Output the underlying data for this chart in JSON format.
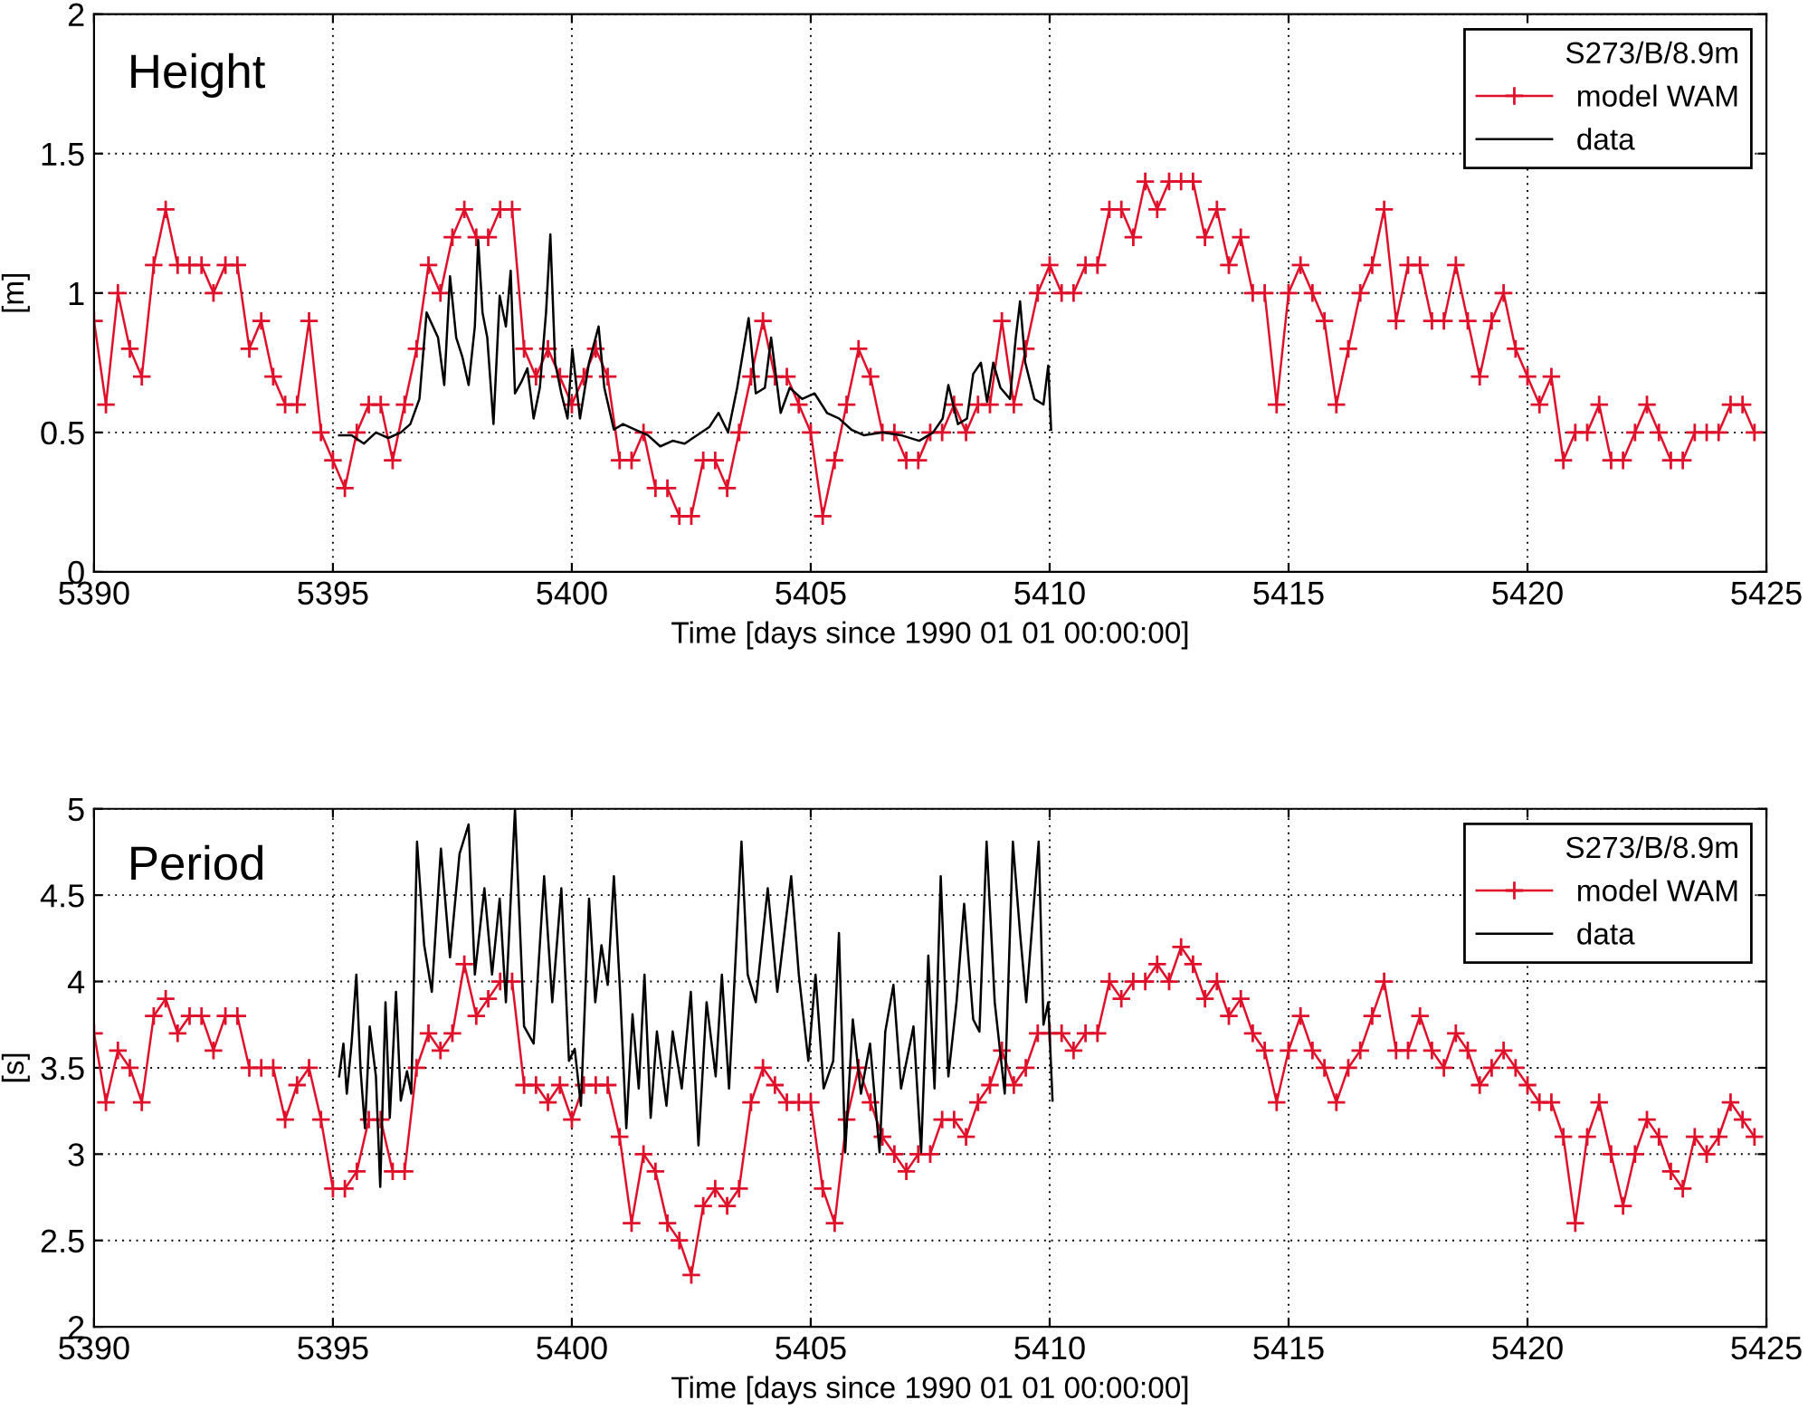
{
  "chart_data": [
    {
      "type": "line",
      "title": "Height",
      "xlabel": "Time [days since 1990 01 01 00:00:00]",
      "ylabel": "[m]",
      "legend_title": "S273/B/8.9m",
      "legend": "top right",
      "grid": true,
      "xlim": [
        5390,
        5425
      ],
      "xticks": [
        5390,
        5395,
        5400,
        5405,
        5410,
        5415,
        5420,
        5425
      ],
      "ylim": [
        0,
        2
      ],
      "yticks": [
        0,
        0.5,
        1,
        1.5,
        2
      ],
      "series": [
        {
          "name": "model WAM",
          "color": "#e0102a",
          "marker": "cross",
          "x": [
            5390,
            5390.25,
            5390.5,
            5390.75,
            5391,
            5391.25,
            5391.5,
            5391.75,
            5392,
            5392.25,
            5392.5,
            5392.75,
            5393,
            5393.25,
            5393.5,
            5393.75,
            5394,
            5394.25,
            5394.5,
            5394.75,
            5395,
            5395.25,
            5395.5,
            5395.75,
            5396,
            5396.25,
            5396.5,
            5396.75,
            5397,
            5397.25,
            5397.5,
            5397.75,
            5398,
            5398.25,
            5398.5,
            5398.75,
            5399,
            5399.25,
            5399.5,
            5399.75,
            5400,
            5400.25,
            5400.5,
            5400.75,
            5401,
            5401.25,
            5401.5,
            5401.75,
            5402,
            5402.25,
            5402.5,
            5402.75,
            5403,
            5403.25,
            5403.5,
            5403.75,
            5404,
            5404.25,
            5404.5,
            5404.75,
            5405,
            5405.25,
            5405.5,
            5405.75,
            5406,
            5406.25,
            5406.5,
            5406.75,
            5407,
            5407.25,
            5407.5,
            5407.75,
            5408,
            5408.25,
            5408.5,
            5408.75,
            5409,
            5409.25,
            5409.5,
            5409.75,
            5410,
            5410.25,
            5410.5,
            5410.75,
            5411,
            5411.25,
            5411.5,
            5411.75,
            5412,
            5412.25,
            5412.5,
            5412.75,
            5413,
            5413.25,
            5413.5,
            5413.75,
            5414,
            5414.25,
            5414.5,
            5414.75,
            5415,
            5415.25,
            5415.5,
            5415.75,
            5416,
            5416.25,
            5416.5,
            5416.75,
            5417,
            5417.25,
            5417.5,
            5417.75,
            5418,
            5418.25,
            5418.5,
            5418.75,
            5419,
            5419.25,
            5419.5,
            5419.75,
            5420,
            5420.25,
            5420.5,
            5420.75,
            5421,
            5421.25,
            5421.5,
            5421.75,
            5422,
            5422.25,
            5422.5,
            5422.75,
            5423,
            5423.25,
            5423.5,
            5423.75,
            5424,
            5424.25,
            5424.5,
            5424.75
          ],
          "values": [
            0.9,
            0.6,
            1.0,
            0.8,
            0.7,
            1.1,
            1.3,
            1.1,
            1.1,
            1.1,
            1.0,
            1.1,
            1.1,
            0.8,
            0.9,
            0.7,
            0.6,
            0.6,
            0.9,
            0.5,
            0.4,
            0.3,
            0.5,
            0.6,
            0.6,
            0.4,
            0.6,
            0.8,
            1.1,
            1.0,
            1.2,
            1.3,
            1.2,
            1.2,
            1.3,
            1.3,
            0.8,
            0.7,
            0.8,
            0.7,
            0.6,
            0.7,
            0.8,
            0.7,
            0.4,
            0.4,
            0.5,
            0.3,
            0.3,
            0.2,
            0.2,
            0.4,
            0.4,
            0.3,
            0.5,
            0.7,
            0.9,
            0.7,
            0.7,
            0.6,
            0.5,
            0.2,
            0.4,
            0.6,
            0.8,
            0.7,
            0.5,
            0.5,
            0.4,
            0.4,
            0.5,
            0.5,
            0.6,
            0.5,
            0.6,
            0.6,
            0.9,
            0.6,
            0.8,
            1.0,
            1.1,
            1.0,
            1.0,
            1.1,
            1.1,
            1.3,
            1.3,
            1.2,
            1.4,
            1.3,
            1.4,
            1.4,
            1.4,
            1.2,
            1.3,
            1.1,
            1.2,
            1.0,
            1.0,
            0.6,
            1.0,
            1.1,
            1.0,
            0.9,
            0.6,
            0.8,
            1.0,
            1.1,
            1.3,
            0.9,
            1.1,
            1.1,
            0.9,
            0.9,
            1.1,
            0.9,
            0.7,
            0.9,
            1.0,
            0.8,
            0.7,
            0.6,
            0.7,
            0.4,
            0.5,
            0.5,
            0.6,
            0.4,
            0.4,
            0.5,
            0.6,
            0.5,
            0.4,
            0.4,
            0.5,
            0.5,
            0.5,
            0.6,
            0.6,
            0.5
          ]
        },
        {
          "name": "data",
          "color": "#000000",
          "marker": "none",
          "x": [
            5395.13,
            5395.39,
            5395.65,
            5395.9,
            5396.16,
            5396.42,
            5396.62,
            5396.81,
            5396.96,
            5397.2,
            5397.33,
            5397.45,
            5397.58,
            5397.71,
            5397.84,
            5397.97,
            5398.04,
            5398.13,
            5398.23,
            5398.36,
            5398.49,
            5398.62,
            5398.72,
            5398.81,
            5398.94,
            5399.07,
            5399.2,
            5399.33,
            5399.46,
            5399.55,
            5399.65,
            5399.78,
            5399.91,
            5400.01,
            5400.17,
            5400.36,
            5400.56,
            5400.68,
            5400.88,
            5401.07,
            5401.33,
            5401.59,
            5401.85,
            5402.11,
            5402.36,
            5402.62,
            5402.88,
            5403.07,
            5403.27,
            5403.46,
            5403.7,
            5403.85,
            5404.04,
            5404.17,
            5404.37,
            5404.56,
            5404.82,
            5405.08,
            5405.34,
            5405.59,
            5405.85,
            5406.11,
            5406.5,
            5406.89,
            5407.27,
            5407.56,
            5407.76,
            5407.88,
            5408.08,
            5408.27,
            5408.4,
            5408.56,
            5408.69,
            5408.82,
            5408.97,
            5409.17,
            5409.29,
            5409.38,
            5409.49,
            5409.68,
            5409.87,
            5409.97,
            5410.03
          ],
          "values": [
            0.49,
            0.49,
            0.46,
            0.5,
            0.48,
            0.5,
            0.53,
            0.62,
            0.93,
            0.84,
            0.67,
            1.06,
            0.84,
            0.77,
            0.67,
            0.88,
            1.19,
            0.93,
            0.84,
            0.53,
            0.99,
            0.88,
            1.08,
            0.64,
            0.68,
            0.73,
            0.55,
            0.66,
            0.93,
            1.21,
            0.75,
            0.64,
            0.55,
            0.8,
            0.55,
            0.75,
            0.88,
            0.66,
            0.51,
            0.53,
            0.51,
            0.49,
            0.45,
            0.47,
            0.46,
            0.49,
            0.52,
            0.57,
            0.5,
            0.66,
            0.91,
            0.64,
            0.66,
            0.84,
            0.57,
            0.66,
            0.62,
            0.64,
            0.57,
            0.55,
            0.51,
            0.49,
            0.5,
            0.49,
            0.47,
            0.5,
            0.55,
            0.67,
            0.53,
            0.55,
            0.71,
            0.75,
            0.61,
            0.75,
            0.66,
            0.62,
            0.84,
            0.97,
            0.75,
            0.62,
            0.6,
            0.74,
            0.51
          ]
        }
      ]
    },
    {
      "type": "line",
      "title": "Period",
      "xlabel": "Time [days since 1990 01 01 00:00:00]",
      "ylabel": "[s]",
      "legend_title": "S273/B/8.9m",
      "legend": "top right",
      "grid": true,
      "xlim": [
        5390,
        5425
      ],
      "xticks": [
        5390,
        5395,
        5400,
        5405,
        5410,
        5415,
        5420,
        5425
      ],
      "ylim": [
        2,
        5
      ],
      "yticks": [
        2,
        2.5,
        3,
        3.5,
        4,
        4.5,
        5
      ],
      "series": [
        {
          "name": "model WAM",
          "color": "#e0102a",
          "marker": "cross",
          "x": [
            5390,
            5390.25,
            5390.5,
            5390.75,
            5391,
            5391.25,
            5391.5,
            5391.75,
            5392,
            5392.25,
            5392.5,
            5392.75,
            5393,
            5393.25,
            5393.5,
            5393.75,
            5394,
            5394.25,
            5394.5,
            5394.75,
            5395,
            5395.25,
            5395.5,
            5395.75,
            5396,
            5396.25,
            5396.5,
            5396.75,
            5397,
            5397.25,
            5397.5,
            5397.75,
            5398,
            5398.25,
            5398.5,
            5398.75,
            5399,
            5399.25,
            5399.5,
            5399.75,
            5400,
            5400.25,
            5400.5,
            5400.75,
            5401,
            5401.25,
            5401.5,
            5401.75,
            5402,
            5402.25,
            5402.5,
            5402.75,
            5403,
            5403.25,
            5403.5,
            5403.75,
            5404,
            5404.25,
            5404.5,
            5404.75,
            5405,
            5405.25,
            5405.5,
            5405.75,
            5406,
            5406.25,
            5406.5,
            5406.75,
            5407,
            5407.25,
            5407.5,
            5407.75,
            5408,
            5408.25,
            5408.5,
            5408.75,
            5409,
            5409.25,
            5409.5,
            5409.75,
            5410,
            5410.25,
            5410.5,
            5410.75,
            5411,
            5411.25,
            5411.5,
            5411.75,
            5412,
            5412.25,
            5412.5,
            5412.75,
            5413,
            5413.25,
            5413.5,
            5413.75,
            5414,
            5414.25,
            5414.5,
            5414.75,
            5415,
            5415.25,
            5415.5,
            5415.75,
            5416,
            5416.25,
            5416.5,
            5416.75,
            5417,
            5417.25,
            5417.5,
            5417.75,
            5418,
            5418.25,
            5418.5,
            5418.75,
            5419,
            5419.25,
            5419.5,
            5419.75,
            5420,
            5420.25,
            5420.5,
            5420.75,
            5421,
            5421.25,
            5421.5,
            5421.75,
            5422,
            5422.25,
            5422.5,
            5422.75,
            5423,
            5423.25,
            5423.5,
            5423.75,
            5424,
            5424.25,
            5424.5,
            5424.75
          ],
          "values": [
            3.7,
            3.3,
            3.6,
            3.5,
            3.3,
            3.8,
            3.9,
            3.7,
            3.8,
            3.8,
            3.6,
            3.8,
            3.8,
            3.5,
            3.5,
            3.5,
            3.2,
            3.4,
            3.5,
            3.2,
            2.8,
            2.8,
            2.9,
            3.2,
            3.2,
            2.9,
            2.9,
            3.5,
            3.7,
            3.6,
            3.7,
            4.1,
            3.8,
            3.9,
            4.0,
            4.0,
            3.4,
            3.4,
            3.3,
            3.4,
            3.2,
            3.4,
            3.4,
            3.4,
            3.1,
            2.6,
            3.0,
            2.9,
            2.6,
            2.5,
            2.3,
            2.7,
            2.8,
            2.7,
            2.8,
            3.3,
            3.5,
            3.4,
            3.3,
            3.3,
            3.3,
            2.8,
            2.6,
            3.2,
            3.5,
            3.3,
            3.1,
            3.0,
            2.9,
            3.0,
            3.0,
            3.2,
            3.2,
            3.1,
            3.3,
            3.4,
            3.6,
            3.4,
            3.5,
            3.7,
            3.7,
            3.7,
            3.6,
            3.7,
            3.7,
            4.0,
            3.9,
            4.0,
            4.0,
            4.1,
            4.0,
            4.2,
            4.1,
            3.9,
            4.0,
            3.8,
            3.9,
            3.7,
            3.6,
            3.3,
            3.6,
            3.8,
            3.6,
            3.5,
            3.3,
            3.5,
            3.6,
            3.8,
            4.0,
            3.6,
            3.6,
            3.8,
            3.6,
            3.5,
            3.7,
            3.6,
            3.4,
            3.5,
            3.6,
            3.5,
            3.4,
            3.3,
            3.3,
            3.1,
            2.6,
            3.1,
            3.3,
            3.0,
            2.7,
            3.0,
            3.2,
            3.1,
            2.9,
            2.8,
            3.1,
            3.0,
            3.1,
            3.3,
            3.2,
            3.1
          ]
        },
        {
          "name": "data",
          "color": "#000000",
          "marker": "none",
          "x": [
            5395.13,
            5395.22,
            5395.29,
            5395.39,
            5395.49,
            5395.58,
            5395.67,
            5395.77,
            5395.9,
            5395.99,
            5396.1,
            5396.19,
            5396.32,
            5396.42,
            5396.55,
            5396.64,
            5396.76,
            5396.91,
            5397.07,
            5397.26,
            5397.45,
            5397.65,
            5397.84,
            5397.97,
            5398.17,
            5398.33,
            5398.49,
            5398.62,
            5398.81,
            5399.0,
            5399.2,
            5399.42,
            5399.59,
            5399.78,
            5399.94,
            5400.06,
            5400.19,
            5400.36,
            5400.49,
            5400.62,
            5400.75,
            5400.88,
            5401.01,
            5401.14,
            5401.27,
            5401.4,
            5401.52,
            5401.65,
            5401.78,
            5401.98,
            5402.11,
            5402.3,
            5402.49,
            5402.65,
            5402.82,
            5403.01,
            5403.14,
            5403.29,
            5403.55,
            5403.68,
            5403.85,
            5404.1,
            5404.3,
            5404.59,
            5404.75,
            5404.95,
            5405.1,
            5405.27,
            5405.47,
            5405.59,
            5405.72,
            5405.88,
            5406.05,
            5406.24,
            5406.44,
            5406.56,
            5406.73,
            5406.89,
            5407.15,
            5407.31,
            5407.46,
            5407.59,
            5407.72,
            5407.88,
            5408.05,
            5408.21,
            5408.4,
            5408.53,
            5408.68,
            5408.85,
            5409.06,
            5409.23,
            5409.38,
            5409.51,
            5409.77,
            5409.87,
            5409.97,
            5410.06
          ],
          "values": [
            3.45,
            3.64,
            3.35,
            3.64,
            4.04,
            3.48,
            3.15,
            3.74,
            3.45,
            2.81,
            3.88,
            3.21,
            3.94,
            3.31,
            3.48,
            3.35,
            4.81,
            4.21,
            3.94,
            4.77,
            4.14,
            4.74,
            4.91,
            4.04,
            4.54,
            4.04,
            4.48,
            3.88,
            5.0,
            3.74,
            3.64,
            4.61,
            3.88,
            4.54,
            3.54,
            3.61,
            3.28,
            4.48,
            3.88,
            4.21,
            3.98,
            4.61,
            3.94,
            3.15,
            3.81,
            3.38,
            4.04,
            3.21,
            3.71,
            3.28,
            3.71,
            3.38,
            3.94,
            3.05,
            3.88,
            3.45,
            4.04,
            3.38,
            4.81,
            4.04,
            3.88,
            4.54,
            3.94,
            4.61,
            4.04,
            3.54,
            4.04,
            3.38,
            3.54,
            4.28,
            3.01,
            3.78,
            3.35,
            3.64,
            3.01,
            3.71,
            3.98,
            3.38,
            3.74,
            3.01,
            4.15,
            3.38,
            4.61,
            3.45,
            3.88,
            4.45,
            3.78,
            3.71,
            4.81,
            3.88,
            3.35,
            4.81,
            4.28,
            3.88,
            4.81,
            3.75,
            3.88,
            3.31
          ]
        }
      ]
    }
  ]
}
